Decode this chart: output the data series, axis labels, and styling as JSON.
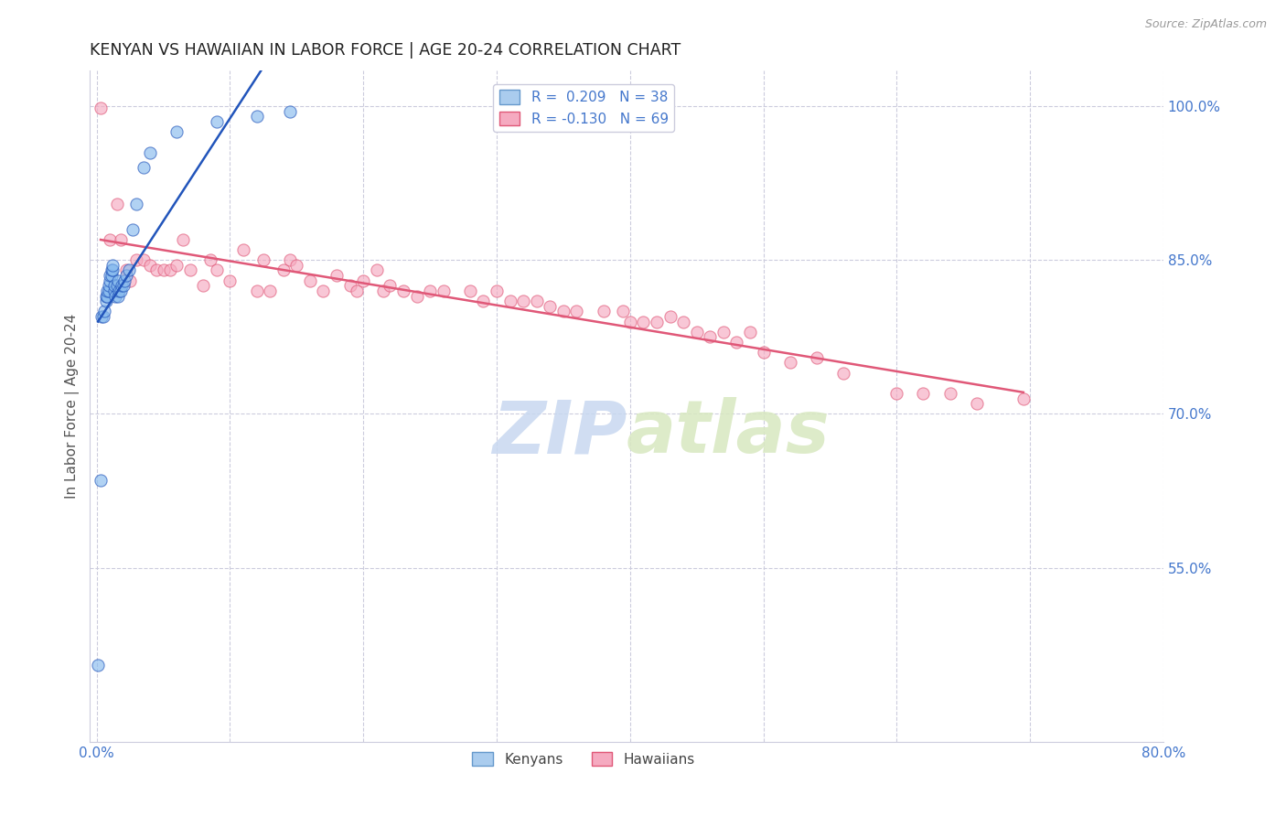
{
  "title": "KENYAN VS HAWAIIAN IN LABOR FORCE | AGE 20-24 CORRELATION CHART",
  "source": "Source: ZipAtlas.com",
  "ylabel": "In Labor Force | Age 20-24",
  "xlim": [
    -0.005,
    0.8
  ],
  "ylim": [
    0.38,
    1.035
  ],
  "yticks_right": [
    0.55,
    0.7,
    0.85,
    1.0
  ],
  "yticklabels_right": [
    "55.0%",
    "70.0%",
    "85.0%",
    "100.0%"
  ],
  "bg_color": "#ffffff",
  "scatter_color_kenyan": "#88bbee",
  "scatter_color_hawaiian": "#f5aac0",
  "scatter_alpha": 0.65,
  "scatter_size": 90,
  "regression_color_kenyan": "#2255bb",
  "regression_color_hawaiian": "#e05878",
  "regression_lw": 1.8,
  "legend_color1": "#aaccee",
  "legend_color2": "#f5aac0",
  "kenyan_x": [
    0.001,
    0.003,
    0.004,
    0.005,
    0.006,
    0.007,
    0.007,
    0.008,
    0.008,
    0.009,
    0.009,
    0.01,
    0.01,
    0.011,
    0.011,
    0.012,
    0.012,
    0.013,
    0.013,
    0.014,
    0.015,
    0.016,
    0.016,
    0.017,
    0.018,
    0.019,
    0.02,
    0.021,
    0.022,
    0.024,
    0.027,
    0.03,
    0.035,
    0.04,
    0.06,
    0.09,
    0.12,
    0.145
  ],
  "kenyan_y": [
    0.455,
    0.635,
    0.795,
    0.795,
    0.8,
    0.81,
    0.815,
    0.815,
    0.82,
    0.82,
    0.825,
    0.83,
    0.835,
    0.835,
    0.84,
    0.84,
    0.845,
    0.82,
    0.825,
    0.815,
    0.825,
    0.83,
    0.815,
    0.82,
    0.82,
    0.825,
    0.825,
    0.83,
    0.835,
    0.84,
    0.88,
    0.905,
    0.94,
    0.955,
    0.975,
    0.985,
    0.99,
    0.995
  ],
  "hawaiian_x": [
    0.003,
    0.01,
    0.015,
    0.018,
    0.022,
    0.025,
    0.03,
    0.035,
    0.04,
    0.045,
    0.05,
    0.055,
    0.06,
    0.065,
    0.07,
    0.08,
    0.085,
    0.09,
    0.1,
    0.11,
    0.12,
    0.125,
    0.13,
    0.14,
    0.145,
    0.15,
    0.16,
    0.17,
    0.18,
    0.19,
    0.195,
    0.2,
    0.21,
    0.215,
    0.22,
    0.23,
    0.24,
    0.25,
    0.26,
    0.28,
    0.29,
    0.3,
    0.31,
    0.32,
    0.33,
    0.34,
    0.35,
    0.36,
    0.38,
    0.395,
    0.4,
    0.41,
    0.42,
    0.43,
    0.44,
    0.45,
    0.46,
    0.47,
    0.48,
    0.49,
    0.5,
    0.52,
    0.54,
    0.56,
    0.6,
    0.62,
    0.64,
    0.66,
    0.695
  ],
  "hawaiian_y": [
    0.998,
    0.87,
    0.905,
    0.87,
    0.84,
    0.83,
    0.85,
    0.85,
    0.845,
    0.84,
    0.84,
    0.84,
    0.845,
    0.87,
    0.84,
    0.825,
    0.85,
    0.84,
    0.83,
    0.86,
    0.82,
    0.85,
    0.82,
    0.84,
    0.85,
    0.845,
    0.83,
    0.82,
    0.835,
    0.825,
    0.82,
    0.83,
    0.84,
    0.82,
    0.825,
    0.82,
    0.815,
    0.82,
    0.82,
    0.82,
    0.81,
    0.82,
    0.81,
    0.81,
    0.81,
    0.805,
    0.8,
    0.8,
    0.8,
    0.8,
    0.79,
    0.79,
    0.79,
    0.795,
    0.79,
    0.78,
    0.775,
    0.78,
    0.77,
    0.78,
    0.76,
    0.75,
    0.755,
    0.74,
    0.72,
    0.72,
    0.72,
    0.71,
    0.715
  ]
}
